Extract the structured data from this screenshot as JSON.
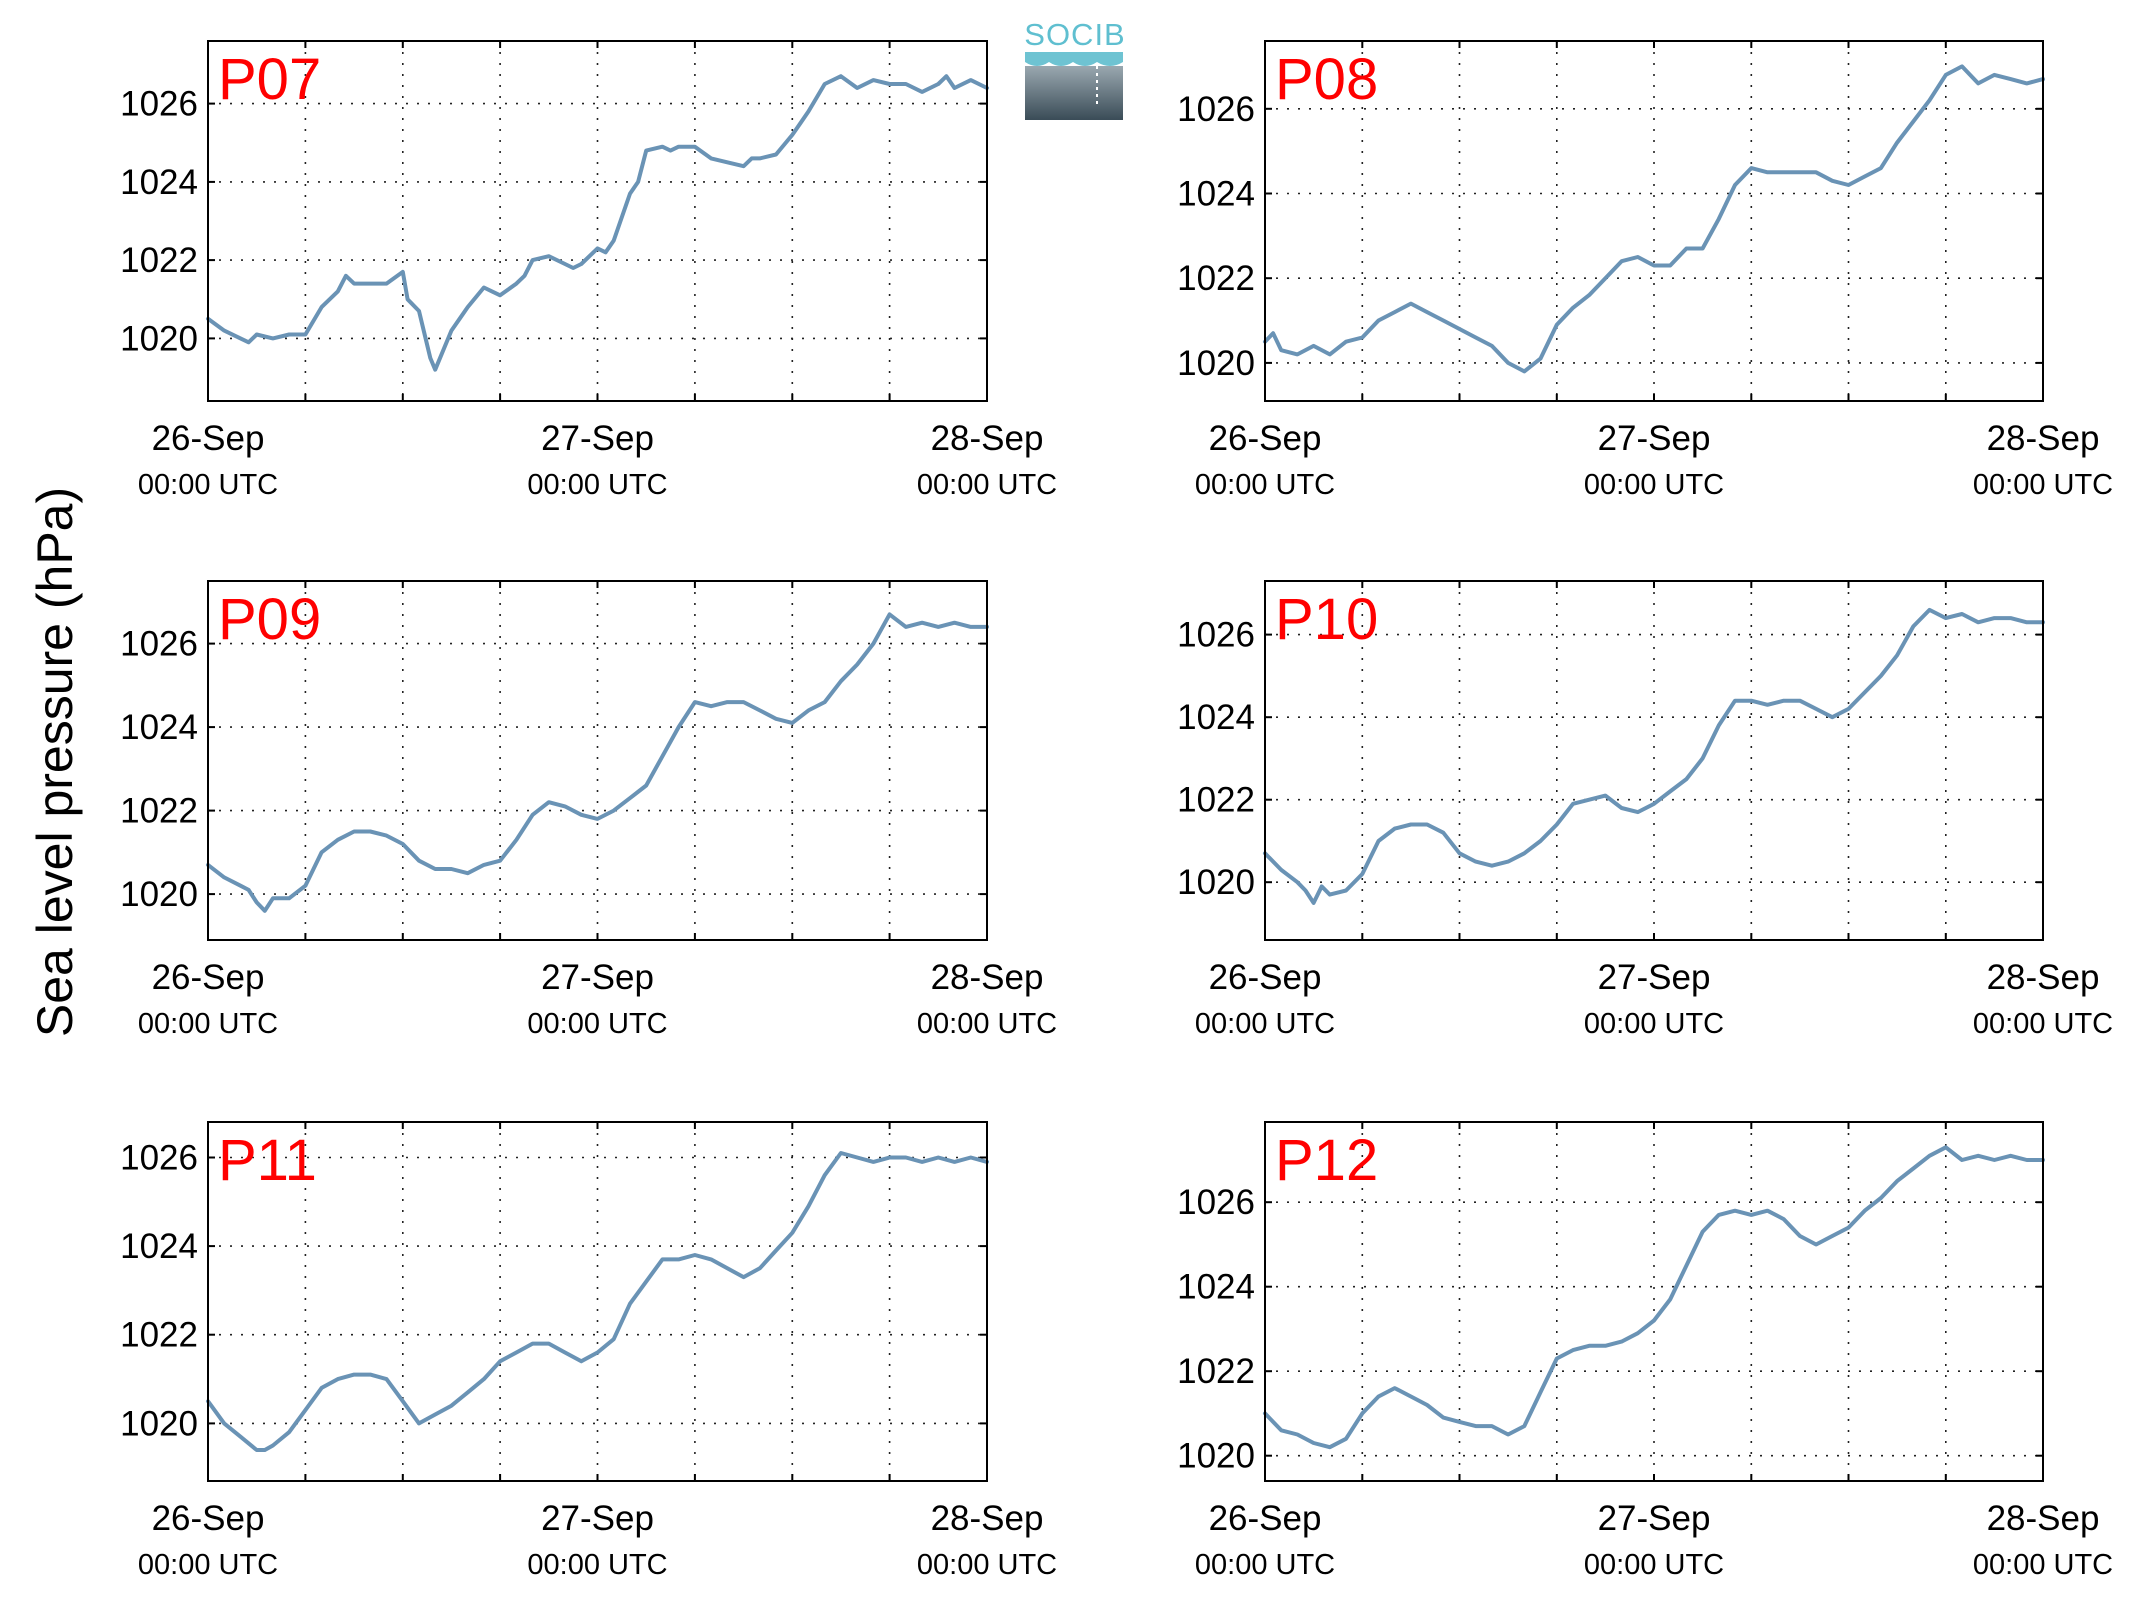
{
  "ylabel": "Sea level pressure (hPa)",
  "logo": {
    "text": "SOCIB"
  },
  "colors": {
    "line": "#6a93b5",
    "panel_label": "#ff0000",
    "logo_text": "#5fbfd0",
    "logo_dark": "#3a4c57"
  },
  "chart_data": [
    {
      "type": "line",
      "panel": "P07",
      "x_ticks": [
        {
          "main": "26-Sep",
          "sub": "00:00 UTC"
        },
        {
          "main": "27-Sep",
          "sub": "00:00 UTC"
        },
        {
          "main": "28-Sep",
          "sub": "00:00 UTC"
        }
      ],
      "y_ticks": [
        1020,
        1022,
        1024,
        1026
      ],
      "xlim_hours": [
        0,
        48
      ],
      "ylim": [
        1018.4,
        1027.6
      ],
      "grid": true,
      "series": [
        {
          "hours": [
            0,
            1,
            2,
            2.5,
            3,
            4,
            5,
            6,
            7,
            8,
            8.5,
            9,
            10,
            11,
            12,
            12.3,
            13,
            13.7,
            14,
            15,
            15.5,
            16,
            17,
            17.5,
            18,
            19,
            19.5,
            20,
            21,
            22,
            22.5,
            23,
            24,
            24.5,
            25,
            26,
            26.5,
            27,
            28,
            28.5,
            29,
            30,
            31,
            32,
            33,
            33.5,
            34,
            35,
            36,
            36.5,
            37,
            38,
            39,
            40,
            41,
            42,
            43,
            44,
            45,
            45.5,
            46,
            47,
            48
          ],
          "values": [
            1020.5,
            1020.2,
            1020.0,
            1019.9,
            1020.1,
            1020.0,
            1020.1,
            1020.1,
            1020.8,
            1021.2,
            1021.6,
            1021.4,
            1021.4,
            1021.4,
            1021.7,
            1021.0,
            1020.7,
            1019.5,
            1019.2,
            1020.2,
            1020.5,
            1020.8,
            1021.3,
            1021.2,
            1021.1,
            1021.4,
            1021.6,
            1022.0,
            1022.1,
            1021.9,
            1021.8,
            1021.9,
            1022.3,
            1022.2,
            1022.5,
            1023.7,
            1024.0,
            1024.8,
            1024.9,
            1024.8,
            1024.9,
            1024.9,
            1024.6,
            1024.5,
            1024.4,
            1024.6,
            1024.6,
            1024.7,
            1025.2,
            1025.5,
            1025.8,
            1026.5,
            1026.7,
            1026.4,
            1026.6,
            1026.5,
            1026.5,
            1026.3,
            1026.5,
            1026.7,
            1026.4,
            1026.6,
            1026.4
          ]
        }
      ]
    },
    {
      "type": "line",
      "panel": "P08",
      "x_ticks": [
        {
          "main": "26-Sep",
          "sub": "00:00 UTC"
        },
        {
          "main": "27-Sep",
          "sub": "00:00 UTC"
        },
        {
          "main": "28-Sep",
          "sub": "00:00 UTC"
        }
      ],
      "y_ticks": [
        1020,
        1022,
        1024,
        1026
      ],
      "xlim_hours": [
        0,
        48
      ],
      "ylim": [
        1019.1,
        1027.6
      ],
      "grid": true,
      "series": [
        {
          "hours": [
            0,
            0.5,
            1,
            2,
            3,
            4,
            5,
            6,
            7,
            8,
            9,
            10,
            11,
            12,
            13,
            14,
            15,
            16,
            17,
            18,
            19,
            20,
            21,
            22,
            23,
            24,
            25,
            26,
            27,
            28,
            29,
            30,
            31,
            32,
            33,
            34,
            35,
            36,
            37,
            38,
            39,
            40,
            41,
            42,
            43,
            44,
            45,
            46,
            47,
            48
          ],
          "values": [
            1020.5,
            1020.7,
            1020.3,
            1020.2,
            1020.4,
            1020.2,
            1020.5,
            1020.6,
            1021.0,
            1021.2,
            1021.4,
            1021.2,
            1021.0,
            1020.8,
            1020.6,
            1020.4,
            1020.0,
            1019.8,
            1020.1,
            1020.9,
            1021.3,
            1021.6,
            1022.0,
            1022.4,
            1022.5,
            1022.3,
            1022.3,
            1022.7,
            1022.7,
            1023.4,
            1024.2,
            1024.6,
            1024.5,
            1024.5,
            1024.5,
            1024.5,
            1024.3,
            1024.2,
            1024.4,
            1024.6,
            1025.2,
            1025.7,
            1026.2,
            1026.8,
            1027.0,
            1026.6,
            1026.8,
            1026.7,
            1026.6,
            1026.7
          ]
        }
      ]
    },
    {
      "type": "line",
      "panel": "P09",
      "x_ticks": [
        {
          "main": "26-Sep",
          "sub": "00:00 UTC"
        },
        {
          "main": "27-Sep",
          "sub": "00:00 UTC"
        },
        {
          "main": "28-Sep",
          "sub": "00:00 UTC"
        }
      ],
      "y_ticks": [
        1020,
        1022,
        1024,
        1026
      ],
      "xlim_hours": [
        0,
        48
      ],
      "ylim": [
        1018.9,
        1027.5
      ],
      "grid": true,
      "series": [
        {
          "hours": [
            0,
            1,
            2,
            2.5,
            3,
            3.5,
            4,
            5,
            6,
            7,
            8,
            9,
            10,
            11,
            12,
            13,
            14,
            15,
            16,
            17,
            18,
            19,
            20,
            21,
            22,
            23,
            24,
            25,
            26,
            27,
            28,
            29,
            30,
            31,
            32,
            33,
            34,
            35,
            36,
            37,
            38,
            39,
            40,
            41,
            42,
            43,
            44,
            45,
            46,
            47,
            48
          ],
          "values": [
            1020.7,
            1020.4,
            1020.2,
            1020.1,
            1019.8,
            1019.6,
            1019.9,
            1019.9,
            1020.2,
            1021.0,
            1021.3,
            1021.5,
            1021.5,
            1021.4,
            1021.2,
            1020.8,
            1020.6,
            1020.6,
            1020.5,
            1020.7,
            1020.8,
            1021.3,
            1021.9,
            1022.2,
            1022.1,
            1021.9,
            1021.8,
            1022.0,
            1022.3,
            1022.6,
            1023.3,
            1024.0,
            1024.6,
            1024.5,
            1024.6,
            1024.6,
            1024.4,
            1024.2,
            1024.1,
            1024.4,
            1024.6,
            1025.1,
            1025.5,
            1026.0,
            1026.7,
            1026.4,
            1026.5,
            1026.4,
            1026.5,
            1026.4,
            1026.4
          ]
        }
      ]
    },
    {
      "type": "line",
      "panel": "P10",
      "x_ticks": [
        {
          "main": "26-Sep",
          "sub": "00:00 UTC"
        },
        {
          "main": "27-Sep",
          "sub": "00:00 UTC"
        },
        {
          "main": "28-Sep",
          "sub": "00:00 UTC"
        }
      ],
      "y_ticks": [
        1020,
        1022,
        1024,
        1026
      ],
      "xlim_hours": [
        0,
        48
      ],
      "ylim": [
        1018.6,
        1027.3
      ],
      "grid": true,
      "series": [
        {
          "hours": [
            0,
            1,
            2,
            2.5,
            3,
            3.5,
            4,
            5,
            6,
            7,
            8,
            9,
            10,
            11,
            12,
            13,
            14,
            15,
            16,
            17,
            18,
            19,
            20,
            21,
            22,
            23,
            24,
            25,
            26,
            27,
            28,
            29,
            30,
            31,
            32,
            33,
            34,
            35,
            36,
            37,
            38,
            39,
            40,
            41,
            42,
            43,
            44,
            45,
            46,
            47,
            48
          ],
          "values": [
            1020.7,
            1020.3,
            1020.0,
            1019.8,
            1019.5,
            1019.9,
            1019.7,
            1019.8,
            1020.2,
            1021.0,
            1021.3,
            1021.4,
            1021.4,
            1021.2,
            1020.7,
            1020.5,
            1020.4,
            1020.5,
            1020.7,
            1021.0,
            1021.4,
            1021.9,
            1022.0,
            1022.1,
            1021.8,
            1021.7,
            1021.9,
            1022.2,
            1022.5,
            1023.0,
            1023.8,
            1024.4,
            1024.4,
            1024.3,
            1024.4,
            1024.4,
            1024.2,
            1024.0,
            1024.2,
            1024.6,
            1025.0,
            1025.5,
            1026.2,
            1026.6,
            1026.4,
            1026.5,
            1026.3,
            1026.4,
            1026.4,
            1026.3,
            1026.3
          ]
        }
      ]
    },
    {
      "type": "line",
      "panel": "P11",
      "x_ticks": [
        {
          "main": "26-Sep",
          "sub": "00:00 UTC"
        },
        {
          "main": "27-Sep",
          "sub": "00:00 UTC"
        },
        {
          "main": "28-Sep",
          "sub": "00:00 UTC"
        }
      ],
      "y_ticks": [
        1020,
        1022,
        1024,
        1026
      ],
      "xlim_hours": [
        0,
        48
      ],
      "ylim": [
        1018.7,
        1026.8
      ],
      "grid": true,
      "series": [
        {
          "hours": [
            0,
            1,
            2,
            3,
            3.5,
            4,
            5,
            6,
            7,
            8,
            9,
            10,
            11,
            12,
            13,
            14,
            15,
            16,
            17,
            18,
            19,
            20,
            21,
            22,
            23,
            24,
            25,
            26,
            27,
            28,
            29,
            30,
            31,
            32,
            33,
            34,
            35,
            36,
            37,
            38,
            39,
            40,
            41,
            42,
            43,
            44,
            45,
            46,
            47,
            48
          ],
          "values": [
            1020.5,
            1020.0,
            1019.7,
            1019.4,
            1019.4,
            1019.5,
            1019.8,
            1020.3,
            1020.8,
            1021.0,
            1021.1,
            1021.1,
            1021.0,
            1020.5,
            1020.0,
            1020.2,
            1020.4,
            1020.7,
            1021.0,
            1021.4,
            1021.6,
            1021.8,
            1021.8,
            1021.6,
            1021.4,
            1021.6,
            1021.9,
            1022.7,
            1023.2,
            1023.7,
            1023.7,
            1023.8,
            1023.7,
            1023.5,
            1023.3,
            1023.5,
            1023.9,
            1024.3,
            1024.9,
            1025.6,
            1026.1,
            1026.0,
            1025.9,
            1026.0,
            1026.0,
            1025.9,
            1026.0,
            1025.9,
            1026.0,
            1025.9
          ]
        }
      ]
    },
    {
      "type": "line",
      "panel": "P12",
      "x_ticks": [
        {
          "main": "26-Sep",
          "sub": "00:00 UTC"
        },
        {
          "main": "27-Sep",
          "sub": "00:00 UTC"
        },
        {
          "main": "28-Sep",
          "sub": "00:00 UTC"
        }
      ],
      "y_ticks": [
        1020,
        1022,
        1024,
        1026
      ],
      "xlim_hours": [
        0,
        48
      ],
      "ylim": [
        1019.4,
        1027.9
      ],
      "grid": true,
      "series": [
        {
          "hours": [
            0,
            1,
            2,
            3,
            4,
            5,
            6,
            7,
            8,
            9,
            10,
            11,
            12,
            13,
            14,
            15,
            16,
            17,
            18,
            19,
            20,
            21,
            22,
            23,
            24,
            25,
            26,
            27,
            28,
            29,
            30,
            31,
            32,
            33,
            34,
            35,
            36,
            37,
            38,
            39,
            40,
            41,
            42,
            43,
            44,
            45,
            46,
            47,
            48
          ],
          "values": [
            1021.0,
            1020.6,
            1020.5,
            1020.3,
            1020.2,
            1020.4,
            1021.0,
            1021.4,
            1021.6,
            1021.4,
            1021.2,
            1020.9,
            1020.8,
            1020.7,
            1020.7,
            1020.5,
            1020.7,
            1021.5,
            1022.3,
            1022.5,
            1022.6,
            1022.6,
            1022.7,
            1022.9,
            1023.2,
            1023.7,
            1024.5,
            1025.3,
            1025.7,
            1025.8,
            1025.7,
            1025.8,
            1025.6,
            1025.2,
            1025.0,
            1025.2,
            1025.4,
            1025.8,
            1026.1,
            1026.5,
            1026.8,
            1027.1,
            1027.3,
            1027.0,
            1027.1,
            1027.0,
            1027.1,
            1027.0,
            1027.0
          ]
        }
      ]
    }
  ]
}
